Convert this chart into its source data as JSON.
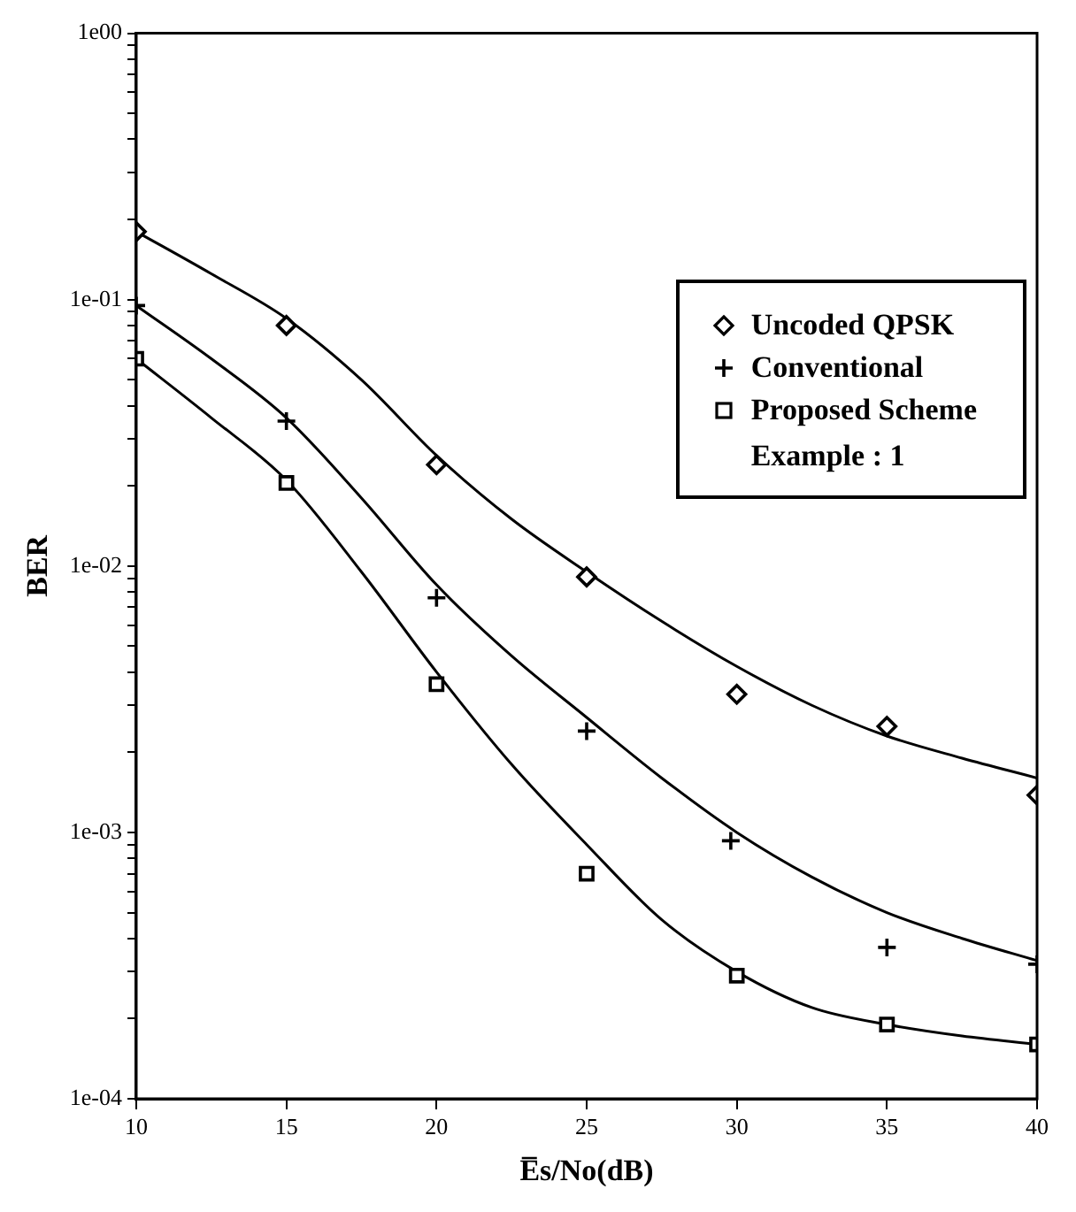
{
  "chart_data": {
    "type": "scatter",
    "xlabel": "E̅s/No(dB)",
    "ylabel": "BER",
    "log": "y",
    "grid": false,
    "legend": "top right",
    "annotations": [
      "Example : 1"
    ],
    "xlim": [
      10,
      40
    ],
    "xticks": [
      10,
      15,
      20,
      25,
      30,
      35,
      40
    ],
    "ylim": [
      0.0001,
      1
    ],
    "yticks": [
      {
        "value": 0.0001,
        "label": "1e-04"
      },
      {
        "value": 0.0002,
        "label": null
      },
      {
        "value": 0.0003,
        "label": null
      },
      {
        "value": 0.0004,
        "label": null
      },
      {
        "value": 0.0005,
        "label": null
      },
      {
        "value": 0.0006,
        "label": null
      },
      {
        "value": 0.0007,
        "label": null
      },
      {
        "value": 0.0008,
        "label": null
      },
      {
        "value": 0.0009,
        "label": null
      },
      {
        "value": 0.001,
        "label": "1e-03"
      },
      {
        "value": 0.002,
        "label": null
      },
      {
        "value": 0.003,
        "label": null
      },
      {
        "value": 0.004,
        "label": null
      },
      {
        "value": 0.005,
        "label": null
      },
      {
        "value": 0.006,
        "label": null
      },
      {
        "value": 0.007,
        "label": null
      },
      {
        "value": 0.008,
        "label": null
      },
      {
        "value": 0.009,
        "label": null
      },
      {
        "value": 0.01,
        "label": "1e-02"
      },
      {
        "value": 0.02,
        "label": null
      },
      {
        "value": 0.03,
        "label": null
      },
      {
        "value": 0.04,
        "label": null
      },
      {
        "value": 0.05,
        "label": null
      },
      {
        "value": 0.06,
        "label": null
      },
      {
        "value": 0.07,
        "label": null
      },
      {
        "value": 0.08,
        "label": null
      },
      {
        "value": 0.09,
        "label": null
      },
      {
        "value": 0.1,
        "label": "1e-01"
      },
      {
        "value": 0.2,
        "label": null
      },
      {
        "value": 0.3,
        "label": null
      },
      {
        "value": 0.4,
        "label": null
      },
      {
        "value": 0.5,
        "label": null
      },
      {
        "value": 0.6,
        "label": null
      },
      {
        "value": 0.7,
        "label": null
      },
      {
        "value": 0.8,
        "label": null
      },
      {
        "value": 0.9,
        "label": null
      },
      {
        "value": 1,
        "label": "1e00"
      }
    ],
    "series": [
      {
        "name": "Uncoded QPSK",
        "marker": "diamond",
        "color": "#000000",
        "x": [
          10,
          15,
          20,
          25,
          30,
          35,
          40
        ],
        "values": [
          0.18,
          0.08,
          0.024,
          0.0091,
          0.0033,
          0.0025,
          0.00138
        ]
      },
      {
        "name": "Conventional",
        "marker": "cross",
        "color": "#000000",
        "x": [
          10,
          15,
          20,
          25,
          29.8,
          35,
          40
        ],
        "values": [
          0.095,
          0.035,
          0.0076,
          0.0024,
          0.00093,
          0.00037,
          0.00032
        ]
      },
      {
        "name": "Proposed Scheme",
        "marker": "square",
        "color": "#000000",
        "x": [
          10,
          15,
          20,
          25,
          30,
          35,
          40
        ],
        "values": [
          0.06,
          0.0205,
          0.0036,
          0.0007,
          0.00029,
          0.00019,
          0.00016
        ]
      },
      {
        "type": "line",
        "marker": "none",
        "line_style": "solid",
        "color": "#000000",
        "x": [
          10,
          12.5,
          15,
          17.5,
          20,
          22.5,
          25,
          27.5,
          30,
          32.5,
          35,
          37.5,
          40
        ],
        "values": [
          0.18,
          0.125,
          0.085,
          0.05,
          0.026,
          0.015,
          0.0095,
          0.0062,
          0.0042,
          0.003,
          0.0023,
          0.0019,
          0.0016
        ]
      },
      {
        "type": "line",
        "marker": "none",
        "line_style": "solid",
        "color": "#000000",
        "x": [
          10,
          12.5,
          15,
          17.5,
          20,
          22.5,
          25,
          27.5,
          30,
          32.5,
          35,
          37.5,
          40
        ],
        "values": [
          0.095,
          0.06,
          0.036,
          0.018,
          0.0085,
          0.0046,
          0.0027,
          0.0016,
          0.001,
          0.00068,
          0.0005,
          0.0004,
          0.00033
        ]
      },
      {
        "type": "line",
        "marker": "none",
        "line_style": "solid",
        "color": "#000000",
        "x": [
          10,
          12.5,
          15,
          17.5,
          20,
          22.5,
          25,
          27.5,
          30,
          32.5,
          35,
          37.5,
          40
        ],
        "values": [
          0.06,
          0.036,
          0.021,
          0.0095,
          0.004,
          0.0018,
          0.0009,
          0.00047,
          0.0003,
          0.00022,
          0.00019,
          0.000172,
          0.00016
        ]
      }
    ]
  }
}
